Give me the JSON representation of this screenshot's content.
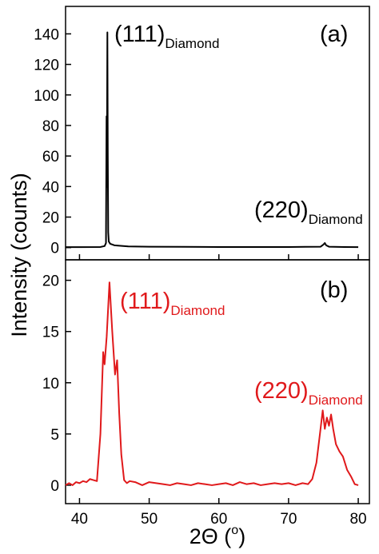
{
  "chart_data": [
    {
      "type": "line",
      "ylabel": "Intensity (counts)",
      "xlim": [
        38,
        81.6
      ],
      "ylim": [
        -8,
        158
      ],
      "xticks": [
        40,
        50,
        60,
        70,
        80
      ],
      "yticks": [
        0,
        20,
        40,
        60,
        80,
        100,
        120,
        140
      ],
      "series": [
        {
          "name": "a",
          "color": "#000000",
          "x": [
            38,
            40,
            43,
            43.6,
            43.8,
            43.88,
            43.93,
            43.97,
            44.0,
            44.06,
            44.12,
            44.2,
            44.4,
            45,
            47,
            50,
            55,
            60,
            65,
            70,
            74.6,
            75.0,
            75.2,
            75.4,
            75.8,
            78,
            80
          ],
          "values": [
            0.3,
            0.3,
            0.4,
            1,
            3,
            86,
            40,
            100,
            141,
            60,
            10,
            4,
            2.5,
            1.5,
            0.8,
            0.6,
            0.5,
            0.4,
            0.4,
            0.4,
            0.6,
            2,
            3,
            1.5,
            0.6,
            0.4,
            0.3
          ]
        }
      ],
      "annotations": [
        {
          "text": "(111)",
          "sub": "Diamond"
        },
        {
          "text": "(a)"
        },
        {
          "text": "(220)",
          "sub": "Diamond"
        }
      ]
    },
    {
      "type": "line",
      "xlabel": {
        "text": "2Θ (",
        "sup": "o",
        "end": ")"
      },
      "xlim": [
        38,
        81.6
      ],
      "ylim": [
        -1.8,
        22
      ],
      "xticks": [
        40,
        50,
        60,
        70,
        80
      ],
      "yticks": [
        0,
        5,
        10,
        15,
        20
      ],
      "series": [
        {
          "name": "b",
          "color": "#e0191b",
          "x": [
            38,
            38.5,
            39,
            39.5,
            40,
            40.5,
            41,
            41.5,
            42,
            42.5,
            43,
            43.4,
            43.6,
            43.9,
            44.3,
            44.7,
            45.1,
            45.4,
            45.7,
            46,
            46.4,
            46.8,
            47.2,
            48,
            49,
            50,
            51,
            52,
            53,
            54,
            55,
            56,
            57,
            58,
            59,
            60,
            61,
            62,
            63,
            64,
            65,
            66,
            67,
            68,
            69,
            70,
            71,
            72,
            72.8,
            73.4,
            74,
            74.5,
            74.9,
            75.2,
            75.5,
            75.8,
            76.1,
            76.4,
            76.8,
            77.3,
            77.8,
            78.4,
            79,
            79.5,
            80
          ],
          "values": [
            0,
            0.2,
            0,
            0.3,
            0.2,
            0.4,
            0.3,
            0.6,
            0.5,
            0.4,
            5,
            13,
            11.8,
            14.5,
            19.8,
            15,
            10.8,
            12.2,
            7,
            3,
            0.5,
            0.2,
            0.4,
            0.3,
            0,
            0.3,
            0.2,
            0.1,
            0,
            0.2,
            0.1,
            0,
            0.2,
            0.1,
            0,
            0.1,
            0.2,
            0,
            0.3,
            0.1,
            0.2,
            0,
            0.1,
            0.2,
            0.1,
            0.2,
            0,
            0.2,
            0.1,
            0.6,
            2.2,
            5,
            7.3,
            5.5,
            6.6,
            5.8,
            6.9,
            5.5,
            4,
            3.3,
            2.8,
            1.5,
            0.8,
            0.1,
            0
          ]
        }
      ],
      "annotations": [
        {
          "text": "(111)",
          "sub": "Diamond"
        },
        {
          "text": "(b)"
        },
        {
          "text": "(220)",
          "sub": "Diamond"
        }
      ]
    }
  ]
}
